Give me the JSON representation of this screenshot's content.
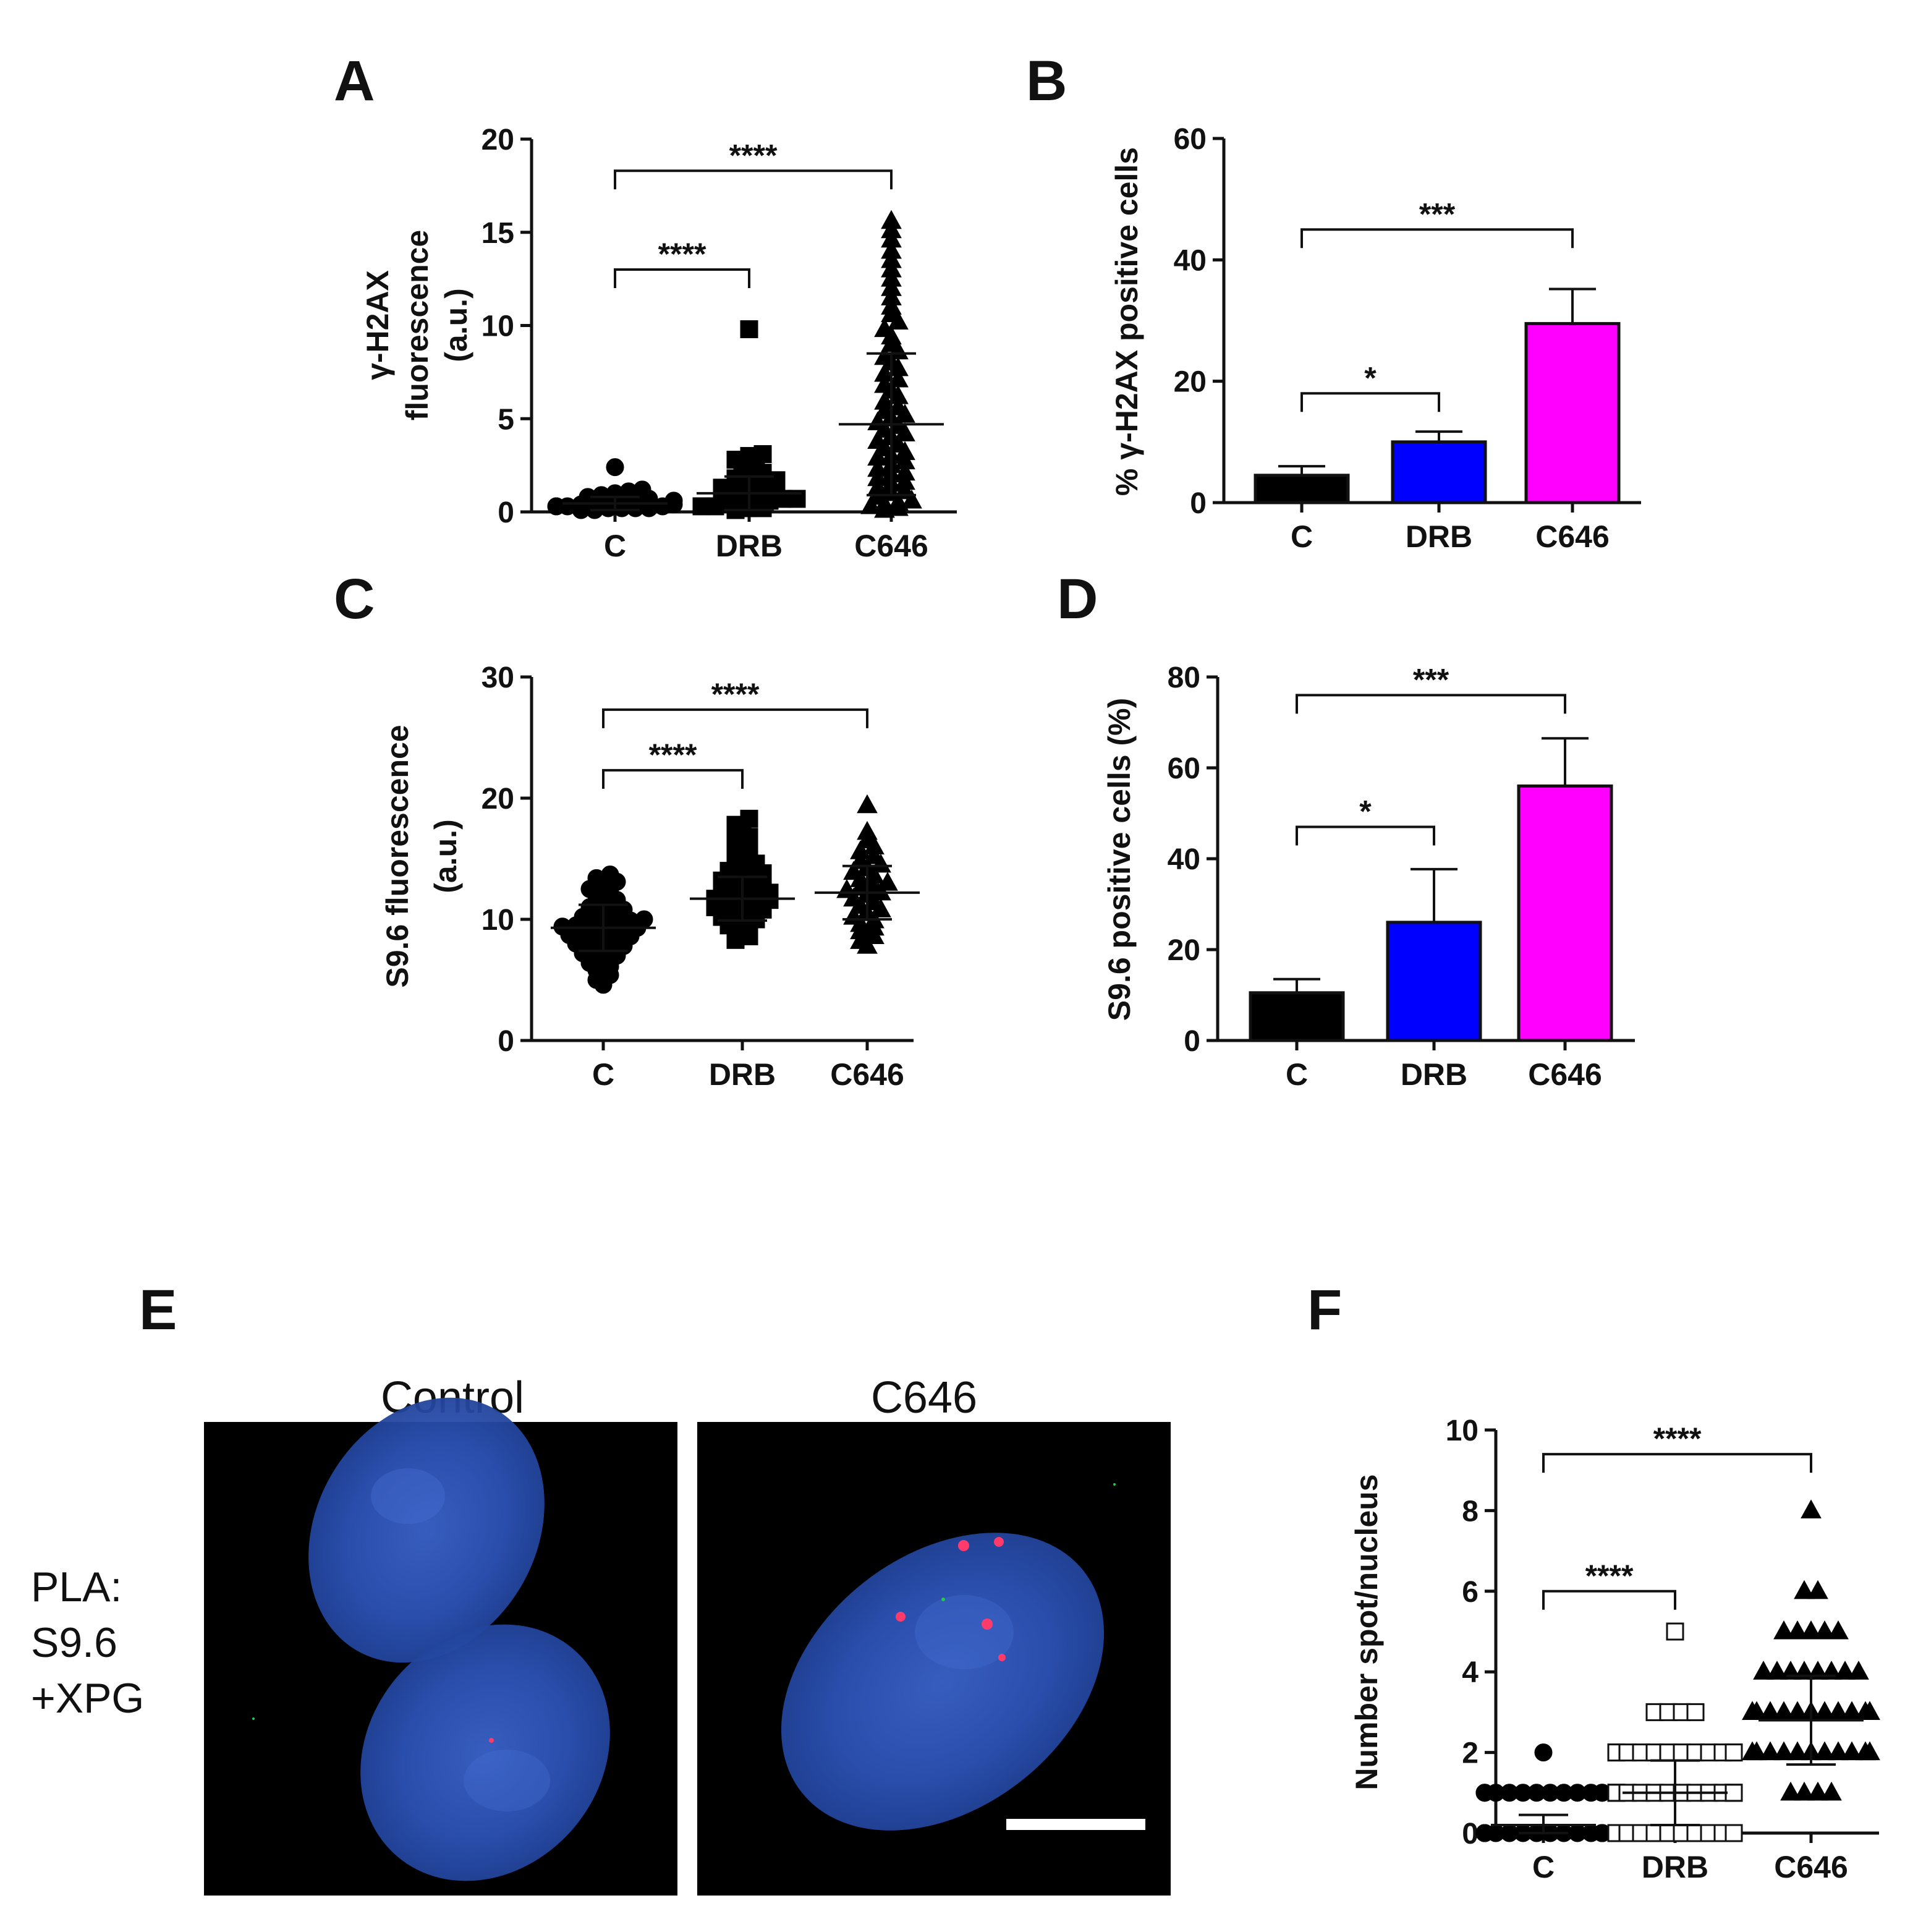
{
  "panel_letters": [
    "A",
    "B",
    "C",
    "D",
    "E",
    "F"
  ],
  "chart_data": [
    {
      "id": "A",
      "type": "scatter",
      "ylabel": [
        "γ-H2AX",
        "fluorescence",
        "(a.u.)"
      ],
      "categories": [
        "C",
        "DRB",
        "C646"
      ],
      "ylim": [
        0,
        20
      ],
      "yticks": [
        0,
        5,
        10,
        15,
        20
      ],
      "marker": [
        "circle",
        "square",
        "triangle"
      ],
      "fill": [
        "#000000",
        "#000000",
        "#000000"
      ],
      "series": [
        {
          "category": "C",
          "values": [
            0.1,
            0.1,
            0.2,
            0.2,
            0.2,
            0.3,
            0.3,
            0.3,
            0.4,
            0.4,
            0.5,
            0.5,
            0.6,
            0.7,
            0.8,
            0.9,
            1.0,
            1.1,
            0.3,
            0.2,
            0.6,
            0.4,
            1.2,
            2.4
          ],
          "mean": 0.45,
          "sd": 0.35
        },
        {
          "category": "DRB",
          "values": [
            0.1,
            0.2,
            0.2,
            0.3,
            0.3,
            0.4,
            0.5,
            0.5,
            0.6,
            0.7,
            0.7,
            0.8,
            0.9,
            1.0,
            1.1,
            1.2,
            1.3,
            1.4,
            1.5,
            1.6,
            1.7,
            1.8,
            2.0,
            2.1,
            2.3,
            2.5,
            2.8,
            3.0,
            3.1,
            9.8
          ],
          "mean": 1.0,
          "sd": 0.9
        },
        {
          "category": "C646",
          "values": [
            0.1,
            0.2,
            0.3,
            0.4,
            0.5,
            0.6,
            0.8,
            1.0,
            1.1,
            1.3,
            1.5,
            1.6,
            1.8,
            2.0,
            2.1,
            2.3,
            2.5,
            2.7,
            2.9,
            3.0,
            3.2,
            3.4,
            3.6,
            3.8,
            4.0,
            4.2,
            4.4,
            4.6,
            4.8,
            5.0,
            5.2,
            5.4,
            5.6,
            5.9,
            6.2,
            6.5,
            6.8,
            7.1,
            7.4,
            7.7,
            8.0,
            8.3,
            8.6,
            9.0,
            9.4,
            9.8,
            10.2,
            10.6,
            11.0,
            11.5,
            12.0,
            12.5,
            13.0,
            13.5,
            14.0,
            14.6,
            15.1,
            15.6
          ],
          "mean": 4.7,
          "sd": 3.8
        }
      ],
      "brackets": [
        {
          "from": 0,
          "to": 1,
          "y": 13,
          "stars": "****"
        },
        {
          "from": 0,
          "to": 2,
          "y": 18.3,
          "stars": "****"
        }
      ]
    },
    {
      "id": "B",
      "type": "bar",
      "ylabel": [
        "% γ-H2AX positive cells"
      ],
      "categories": [
        "C",
        "DRB",
        "C646"
      ],
      "values": [
        4.5,
        10,
        29.5
      ],
      "errors": [
        1.5,
        1.7,
        5.7
      ],
      "colors": [
        "#000000",
        "#0000ff",
        "#ff00ff"
      ],
      "ylim": [
        0,
        60
      ],
      "yticks": [
        0,
        20,
        40,
        60
      ],
      "brackets": [
        {
          "from": 0,
          "to": 1,
          "y": 18,
          "stars": "*"
        },
        {
          "from": 0,
          "to": 2,
          "y": 45,
          "stars": "***"
        }
      ]
    },
    {
      "id": "C",
      "type": "scatter",
      "ylabel": [
        "S9.6 fluorescence",
        "(a.u.)"
      ],
      "categories": [
        "C",
        "DRB",
        "C646"
      ],
      "ylim": [
        0,
        30
      ],
      "yticks": [
        0,
        10,
        20,
        30
      ],
      "marker": [
        "circle",
        "square",
        "triangle"
      ],
      "fill": [
        "#000000",
        "#000000",
        "#000000"
      ],
      "series": [
        {
          "category": "C",
          "values": [
            4.6,
            5.0,
            5.4,
            5.8,
            6.1,
            6.4,
            6.7,
            7.0,
            7.2,
            7.4,
            7.6,
            7.8,
            8.0,
            8.1,
            8.3,
            8.4,
            8.6,
            8.7,
            8.8,
            9.0,
            9.1,
            9.2,
            9.3,
            9.4,
            9.5,
            9.6,
            9.7,
            9.8,
            9.9,
            10.0,
            10.2,
            10.4,
            10.6,
            10.8,
            11.0,
            11.3,
            11.6,
            11.9,
            12.2,
            12.5,
            12.8,
            13.1,
            13.4,
            13.7
          ],
          "mean": 9.3,
          "sd": 1.9
        },
        {
          "category": "DRB",
          "values": [
            8.3,
            8.6,
            8.9,
            9.2,
            9.5,
            9.8,
            10.0,
            10.2,
            10.4,
            10.6,
            10.8,
            11.0,
            11.2,
            11.4,
            11.5,
            11.6,
            11.7,
            11.8,
            11.9,
            12.0,
            12.2,
            12.4,
            12.6,
            12.8,
            13.0,
            13.2,
            13.4,
            13.6,
            13.8,
            14.0,
            14.3,
            14.6,
            14.9,
            15.2,
            15.6,
            16.0,
            16.4,
            16.8,
            17.3,
            17.8,
            18.3
          ],
          "mean": 11.7,
          "sd": 1.8
        },
        {
          "category": "C646",
          "values": [
            7.8,
            8.2,
            8.6,
            9.0,
            9.3,
            9.6,
            9.9,
            10.2,
            10.5,
            10.8,
            11.1,
            11.4,
            11.7,
            12.0,
            12.2,
            12.4,
            12.6,
            12.8,
            13.0,
            13.3,
            13.6,
            13.9,
            14.2,
            14.5,
            14.8,
            15.2,
            15.6,
            16.0,
            16.5,
            17.2,
            19.4
          ],
          "mean": 12.2,
          "sd": 2.2
        }
      ],
      "brackets": [
        {
          "from": 0,
          "to": 1,
          "y": 22.3,
          "stars": "****"
        },
        {
          "from": 0,
          "to": 2,
          "y": 27.3,
          "stars": "****"
        }
      ]
    },
    {
      "id": "D",
      "type": "bar",
      "ylabel": [
        "S9.6 positive cells (%)"
      ],
      "categories": [
        "C",
        "DRB",
        "C646"
      ],
      "values": [
        10.5,
        26,
        56
      ],
      "errors": [
        3,
        11.7,
        10.5
      ],
      "colors": [
        "#000000",
        "#0000ff",
        "#ff00ff"
      ],
      "ylim": [
        0,
        80
      ],
      "yticks": [
        0,
        20,
        40,
        60,
        80
      ],
      "brackets": [
        {
          "from": 0,
          "to": 1,
          "y": 47,
          "stars": "*"
        },
        {
          "from": 0,
          "to": 2,
          "y": 76,
          "stars": "***"
        }
      ]
    },
    {
      "id": "F",
      "type": "scatter",
      "ylabel": [
        "Number spot/nucleus"
      ],
      "categories": [
        "C",
        "DRB",
        "C646"
      ],
      "ylim": [
        0,
        10
      ],
      "yticks": [
        0,
        2,
        4,
        6,
        8,
        10
      ],
      "marker": [
        "circle",
        "square",
        "triangle"
      ],
      "fill": [
        "#000000",
        "#ffffff",
        "#000000"
      ],
      "series": [
        {
          "category": "C",
          "values": [
            0,
            0,
            0,
            0,
            0,
            0,
            0,
            0,
            0,
            0,
            0,
            0,
            0,
            0,
            0,
            0,
            0,
            0,
            0,
            0,
            1,
            1,
            1,
            1,
            1,
            1,
            1,
            1,
            1,
            1,
            1,
            1,
            2
          ],
          "mean": 0.2,
          "sd": 0.25
        },
        {
          "category": "DRB",
          "values": [
            0,
            0,
            0,
            0,
            0,
            0,
            0,
            0,
            0,
            0,
            0,
            0,
            0,
            0,
            1,
            1,
            1,
            1,
            1,
            1,
            1,
            1,
            1,
            1,
            1,
            1,
            1,
            1,
            2,
            2,
            2,
            2,
            2,
            2,
            2,
            2,
            2,
            2,
            2,
            2,
            3,
            3,
            3,
            3,
            5
          ],
          "mean": 1.0,
          "sd": 0.8
        },
        {
          "category": "C646",
          "values": [
            1,
            1,
            1,
            1,
            2,
            2,
            2,
            2,
            2,
            2,
            2,
            2,
            2,
            2,
            2,
            3,
            3,
            3,
            3,
            3,
            3,
            3,
            3,
            3,
            3,
            3,
            3,
            3,
            4,
            4,
            4,
            4,
            4,
            4,
            4,
            4,
            5,
            5,
            5,
            5,
            5,
            6,
            6,
            8
          ],
          "mean": 2.8,
          "sd": 1.1
        }
      ],
      "brackets": [
        {
          "from": 0,
          "to": 1,
          "y": 6,
          "stars": "****"
        },
        {
          "from": 0,
          "to": 2,
          "y": 9.4,
          "stars": "****"
        }
      ]
    }
  ],
  "images": {
    "label": "E",
    "titles": [
      "Control",
      "C646"
    ],
    "pla_label": [
      "PLA:",
      "S9.6",
      "+XPG"
    ]
  }
}
